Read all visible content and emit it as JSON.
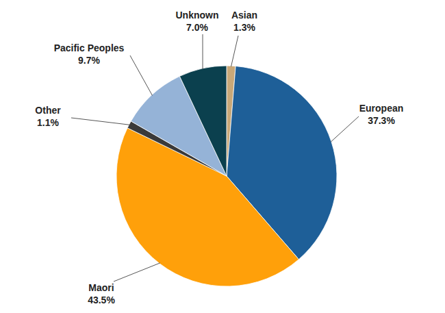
{
  "chart_data": {
    "type": "pie",
    "categories": [
      "Asian",
      "European",
      "Maori",
      "Other",
      "Pacific Peoples",
      "Unknown"
    ],
    "values": [
      1.3,
      37.3,
      43.5,
      1.1,
      9.7,
      7.0
    ],
    "value_labels": [
      "1.3%",
      "37.3%",
      "43.5%",
      "1.1%",
      "9.7%",
      "7.0%"
    ],
    "colors": [
      "#c9a878",
      "#1e5f98",
      "#ffa00a",
      "#3a3a3a",
      "#95b3d7",
      "#0b404e"
    ],
    "data_labels": true
  }
}
